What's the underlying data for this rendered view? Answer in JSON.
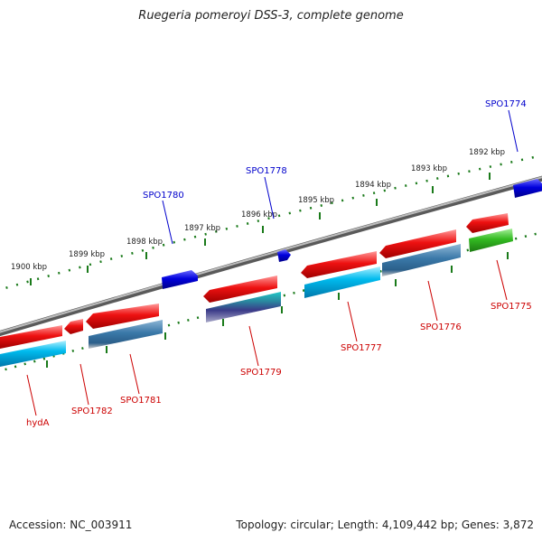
{
  "title": "Ruegeria pomeroyi DSS-3, complete genome",
  "footer": {
    "accession": "Accession: NC_003911",
    "stats": "Topology: circular; Length: 4,109,442 bp; Genes: 3,872"
  },
  "colors": {
    "backbone": "#888888",
    "ticks": "#1a7a1a",
    "red_gene": "#ee1111",
    "blue_gene": "#0000dd",
    "cyan_gene": "#00bbee",
    "steel_gene": "#3a78a8",
    "green_gene": "#33bb22",
    "label_red": "#cc0000",
    "label_blue": "#0000cc"
  },
  "scale": {
    "ticks": [
      {
        "label": "1900 kbp"
      },
      {
        "label": "1899 kbp"
      },
      {
        "label": "1898 kbp"
      },
      {
        "label": "1897 kbp"
      },
      {
        "label": "1896 kbp"
      },
      {
        "label": "1895 kbp"
      },
      {
        "label": "1894 kbp"
      },
      {
        "label": "1893 kbp"
      },
      {
        "label": "1892 kbp"
      }
    ]
  },
  "genes": [
    {
      "label": "hydA",
      "strand": "reverse",
      "color": "red"
    },
    {
      "label": "SPO1782",
      "strand": "reverse",
      "color": "red"
    },
    {
      "label": "SPO1781",
      "strand": "reverse",
      "color": "red"
    },
    {
      "label": "SPO1780",
      "strand": "forward",
      "color": "blue"
    },
    {
      "label": "SPO1779",
      "strand": "reverse",
      "color": "red"
    },
    {
      "label": "SPO1778",
      "strand": "forward",
      "color": "blue"
    },
    {
      "label": "SPO1777",
      "strand": "reverse",
      "color": "red"
    },
    {
      "label": "SPO1776",
      "strand": "reverse",
      "color": "red"
    },
    {
      "label": "SPO1775",
      "strand": "reverse",
      "color": "red"
    },
    {
      "label": "SPO1774",
      "strand": "forward",
      "color": "blue"
    }
  ]
}
